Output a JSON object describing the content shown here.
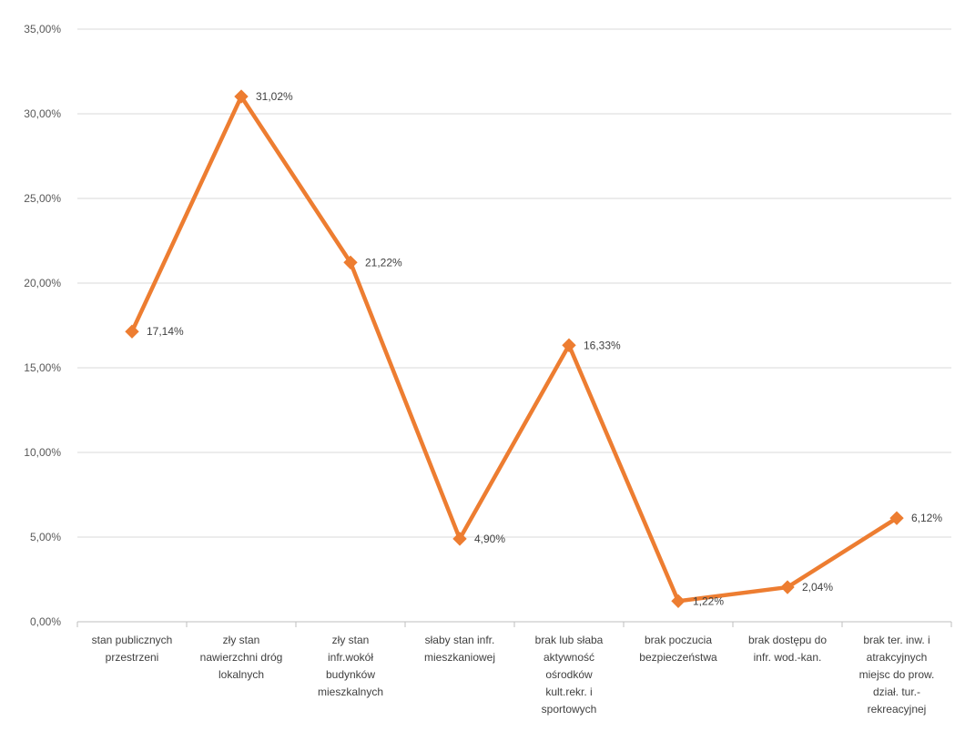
{
  "chart_data": {
    "type": "line",
    "title": "",
    "xlabel": "",
    "ylabel": "",
    "ylim": [
      0,
      35
    ],
    "y_ticks": [
      "0,00%",
      "5,00%",
      "10,00%",
      "15,00%",
      "20,00%",
      "25,00%",
      "30,00%",
      "35,00%"
    ],
    "grid": "horizontal",
    "legend": "none",
    "color": "#ED7D31",
    "categories": [
      [
        "stan publicznych",
        "przestrzeni"
      ],
      [
        "zły stan",
        "nawierzchni dróg",
        "lokalnych"
      ],
      [
        "zły stan",
        "infr.wokół",
        "budynków",
        "mieszkalnych"
      ],
      [
        "słaby stan infr.",
        "mieszkaniowej"
      ],
      [
        "brak lub słaba",
        "aktywność",
        "ośrodków",
        "kult.rekr. i",
        "sportowych"
      ],
      [
        "brak poczucia",
        "bezpieczeństwa"
      ],
      [
        "brak dostępu do",
        "infr. wod.-kan."
      ],
      [
        "brak ter. inw. i",
        "atrakcyjnych",
        "miejsc do prow.",
        "dział. tur.-",
        "rekreacyjnej"
      ]
    ],
    "values": [
      17.14,
      31.02,
      21.22,
      4.9,
      16.33,
      1.22,
      2.04,
      6.12
    ],
    "data_labels": [
      "17,14%",
      "31,02%",
      "21,22%",
      "4,90%",
      "16,33%",
      "1,22%",
      "2,04%",
      "6,12%"
    ]
  }
}
